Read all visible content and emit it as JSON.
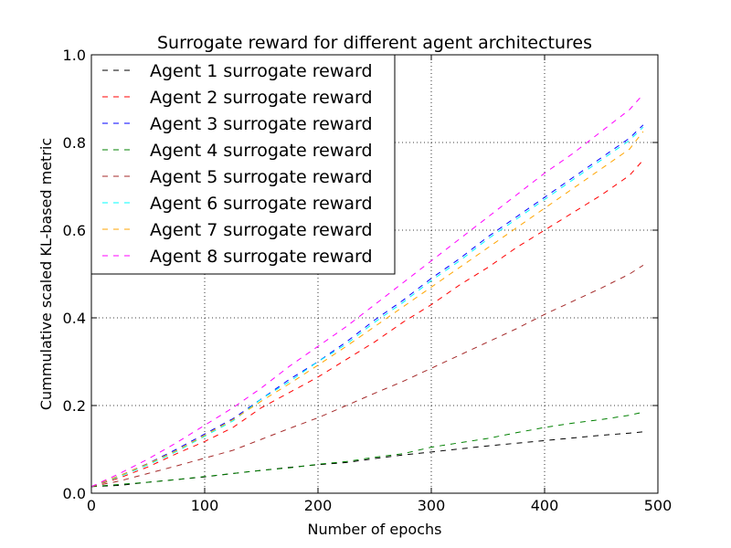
{
  "chart_data": {
    "type": "line",
    "title": "Surrogate reward for different agent architectures",
    "xlabel": "Number of epochs",
    "ylabel": "Cummulative scaled KL-based metric",
    "xlim": [
      0,
      500
    ],
    "ylim": [
      0.0,
      1.0
    ],
    "x_ticks": [
      "0",
      "100",
      "200",
      "300",
      "400",
      "500"
    ],
    "y_ticks": [
      "0.0",
      "0.2",
      "0.4",
      "0.6",
      "0.8",
      "1.0"
    ],
    "grid": true,
    "legend_position": "top-left",
    "line_style": "dashed",
    "x": [
      0,
      25,
      50,
      75,
      100,
      125,
      150,
      175,
      200,
      225,
      250,
      275,
      300,
      325,
      350,
      375,
      400,
      425,
      450,
      475,
      487
    ],
    "series": [
      {
        "name": "Agent 1 surrogate reward",
        "color": "#000000",
        "values": [
          0.015,
          0.018,
          0.025,
          0.031,
          0.037,
          0.045,
          0.052,
          0.059,
          0.065,
          0.07,
          0.079,
          0.087,
          0.094,
          0.101,
          0.108,
          0.114,
          0.12,
          0.126,
          0.132,
          0.137,
          0.14
        ]
      },
      {
        "name": "Agent 2 surrogate reward",
        "color": "#ff0000",
        "values": [
          0.015,
          0.035,
          0.06,
          0.09,
          0.118,
          0.15,
          0.195,
          0.23,
          0.265,
          0.305,
          0.345,
          0.39,
          0.43,
          0.475,
          0.515,
          0.56,
          0.6,
          0.64,
          0.68,
          0.725,
          0.76
        ]
      },
      {
        "name": "Agent 3 surrogate reward",
        "color": "#0000ff",
        "values": [
          0.015,
          0.04,
          0.068,
          0.1,
          0.135,
          0.17,
          0.215,
          0.26,
          0.3,
          0.345,
          0.395,
          0.44,
          0.49,
          0.535,
          0.585,
          0.63,
          0.675,
          0.72,
          0.765,
          0.81,
          0.84
        ]
      },
      {
        "name": "Agent 4 surrogate reward",
        "color": "#008000",
        "values": [
          0.015,
          0.02,
          0.025,
          0.031,
          0.038,
          0.045,
          0.052,
          0.058,
          0.066,
          0.072,
          0.082,
          0.09,
          0.105,
          0.115,
          0.125,
          0.138,
          0.15,
          0.16,
          0.168,
          0.178,
          0.185
        ]
      },
      {
        "name": "Agent 5 surrogate reward",
        "color": "#a52a2a",
        "values": [
          0.015,
          0.028,
          0.045,
          0.062,
          0.08,
          0.098,
          0.123,
          0.148,
          0.172,
          0.2,
          0.228,
          0.255,
          0.285,
          0.315,
          0.345,
          0.375,
          0.408,
          0.438,
          0.468,
          0.5,
          0.52
        ]
      },
      {
        "name": "Agent 6 surrogate reward",
        "color": "#00ffff",
        "values": [
          0.015,
          0.038,
          0.065,
          0.095,
          0.13,
          0.165,
          0.215,
          0.255,
          0.3,
          0.34,
          0.39,
          0.435,
          0.485,
          0.53,
          0.58,
          0.625,
          0.67,
          0.715,
          0.76,
          0.805,
          0.835
        ]
      },
      {
        "name": "Agent 7 surrogate reward",
        "color": "#ffa500",
        "values": [
          0.015,
          0.04,
          0.067,
          0.097,
          0.132,
          0.168,
          0.21,
          0.25,
          0.292,
          0.335,
          0.38,
          0.425,
          0.47,
          0.515,
          0.56,
          0.605,
          0.65,
          0.695,
          0.74,
          0.785,
          0.825
        ]
      },
      {
        "name": "Agent 8 surrogate reward",
        "color": "#ff00ff",
        "values": [
          0.015,
          0.045,
          0.078,
          0.115,
          0.155,
          0.195,
          0.24,
          0.29,
          0.335,
          0.38,
          0.43,
          0.48,
          0.53,
          0.58,
          0.63,
          0.68,
          0.73,
          0.775,
          0.825,
          0.875,
          0.91
        ]
      }
    ]
  }
}
